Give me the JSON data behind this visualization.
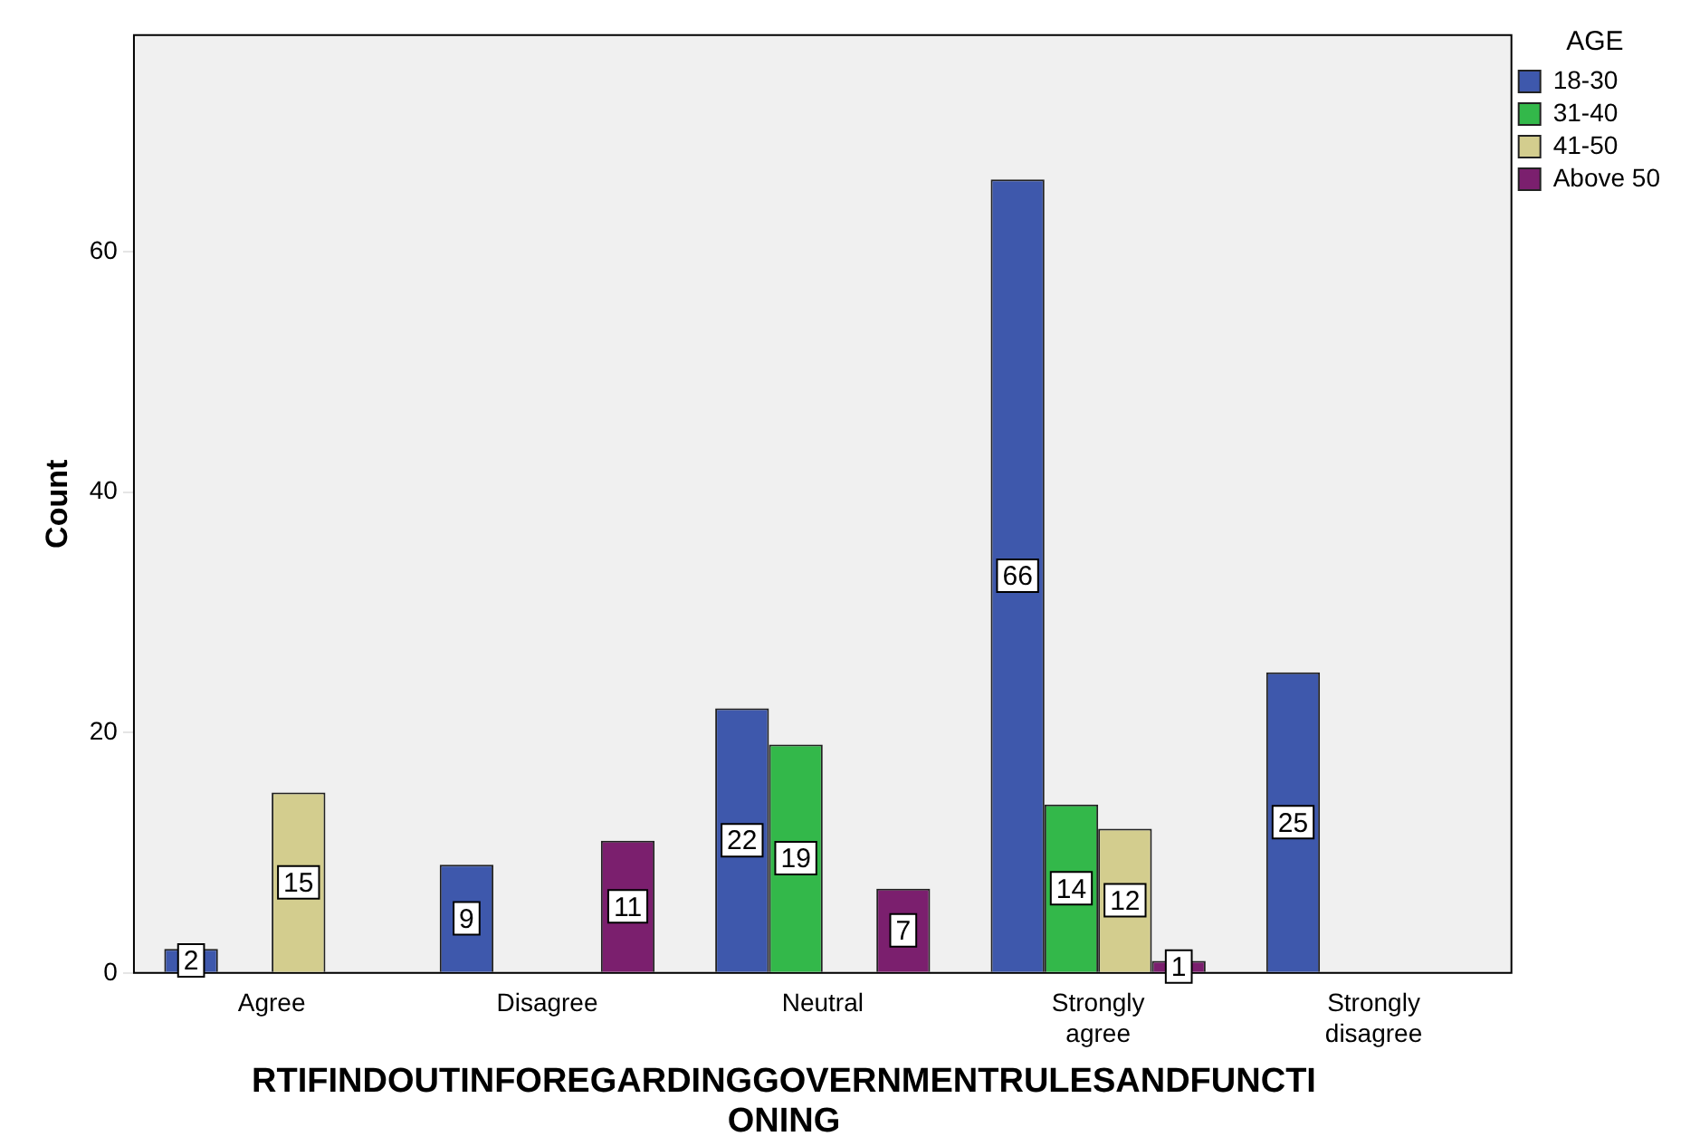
{
  "chart_data": {
    "type": "bar",
    "xlabel": "RTIFINDOUTINFOREGARDINGGOVERNMENTRULESANDFUNCTIONING",
    "ylabel": "Count",
    "legend_title": "AGE",
    "categories": [
      "Agree",
      "Disagree",
      "Neutral",
      "Strongly agree",
      "Strongly disagree"
    ],
    "series": [
      {
        "name": "18-30",
        "color": "#3e58ac",
        "values": [
          2,
          9,
          22,
          66,
          25
        ]
      },
      {
        "name": "31-40",
        "color": "#33b84a",
        "values": [
          null,
          null,
          19,
          14,
          null
        ]
      },
      {
        "name": "41-50",
        "color": "#d3cd8e",
        "values": [
          15,
          null,
          null,
          12,
          null
        ]
      },
      {
        "name": "Above 50",
        "color": "#7b1f6e",
        "values": [
          null,
          11,
          7,
          1,
          null
        ]
      }
    ],
    "ylim": [
      0,
      78
    ],
    "yticks": [
      0,
      20,
      40,
      60
    ],
    "grid": false,
    "legend": "top right",
    "data_labels": true
  }
}
